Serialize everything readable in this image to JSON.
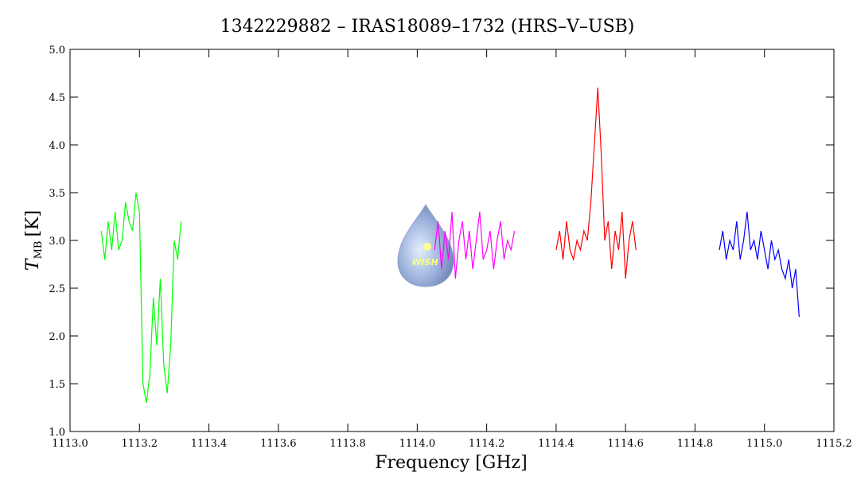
{
  "chart_data": {
    "type": "line",
    "title": "1342229882 – IRAS18089–1732 (HRS–V–USB)",
    "xlabel": "Frequency [GHz]",
    "ylabel": "T",
    "ylabel_sub": "MB",
    "ylabel_unit": "[K]",
    "logo_text": "WISH",
    "xlim": [
      1113.0,
      1115.2
    ],
    "ylim": [
      1.0,
      5.0
    ],
    "xticks": [
      {
        "value": 1113.0,
        "label": "1113.0"
      },
      {
        "value": 1113.2,
        "label": "1113.2"
      },
      {
        "value": 1113.4,
        "label": "1113.4"
      },
      {
        "value": 1113.6,
        "label": "1113.6"
      },
      {
        "value": 1113.8,
        "label": "1113.8"
      },
      {
        "value": 1114.0,
        "label": "1114.0"
      },
      {
        "value": 1114.2,
        "label": "1114.2"
      },
      {
        "value": 1114.4,
        "label": "1114.4"
      },
      {
        "value": 1114.6,
        "label": "1114.6"
      },
      {
        "value": 1114.8,
        "label": "1114.8"
      },
      {
        "value": 1115.0,
        "label": "1115.0"
      },
      {
        "value": 1115.2,
        "label": "1115.2"
      }
    ],
    "yticks": [
      {
        "value": 1.0,
        "label": "1.0"
      },
      1.5,
      {
        "value": 2.0,
        "label": "2.0"
      },
      2.5,
      {
        "value": 3.0,
        "label": "3.0"
      },
      3.5,
      {
        "value": 4.0,
        "label": "4.0"
      },
      4.5,
      {
        "value": 5.0,
        "label": "5.0"
      }
    ],
    "series": [
      {
        "color": "#00ff00",
        "x": [
          1113.09,
          1113.1,
          1113.11,
          1113.12,
          1113.13,
          1113.14,
          1113.15,
          1113.16,
          1113.17,
          1113.18,
          1113.19,
          1113.2,
          1113.21,
          1113.22,
          1113.23,
          1113.24,
          1113.25,
          1113.26,
          1113.27,
          1113.28,
          1113.29,
          1113.3,
          1113.31,
          1113.32
        ],
        "values": [
          3.1,
          2.8,
          3.2,
          2.9,
          3.3,
          2.9,
          3.0,
          3.4,
          3.2,
          3.1,
          3.5,
          3.3,
          1.5,
          1.3,
          1.6,
          2.4,
          1.9,
          2.6,
          1.7,
          1.4,
          1.9,
          3.0,
          2.8,
          3.2
        ]
      },
      {
        "color": "#ff00ff",
        "x": [
          1114.05,
          1114.06,
          1114.07,
          1114.08,
          1114.09,
          1114.1,
          1114.11,
          1114.12,
          1114.13,
          1114.14,
          1114.15,
          1114.16,
          1114.17,
          1114.18,
          1114.19,
          1114.2,
          1114.21,
          1114.22,
          1114.23,
          1114.24,
          1114.25,
          1114.26,
          1114.27,
          1114.28
        ],
        "values": [
          2.9,
          3.2,
          2.7,
          3.1,
          2.8,
          3.3,
          2.6,
          3.0,
          3.2,
          2.8,
          3.1,
          2.7,
          3.0,
          3.3,
          2.8,
          2.9,
          3.1,
          2.7,
          3.0,
          3.2,
          2.8,
          3.0,
          2.9,
          3.1
        ]
      },
      {
        "color": "#ff0000",
        "x": [
          1114.4,
          1114.41,
          1114.42,
          1114.43,
          1114.44,
          1114.45,
          1114.46,
          1114.47,
          1114.48,
          1114.49,
          1114.5,
          1114.51,
          1114.52,
          1114.53,
          1114.54,
          1114.55,
          1114.56,
          1114.57,
          1114.58,
          1114.59,
          1114.6,
          1114.61,
          1114.62,
          1114.63
        ],
        "values": [
          2.9,
          3.1,
          2.8,
          3.2,
          2.9,
          2.8,
          3.0,
          2.9,
          3.1,
          3.0,
          3.4,
          4.0,
          4.6,
          3.9,
          3.0,
          3.2,
          2.7,
          3.1,
          2.9,
          3.3,
          2.6,
          3.0,
          3.2,
          2.9
        ]
      },
      {
        "color": "#0000ff",
        "x": [
          1114.87,
          1114.88,
          1114.89,
          1114.9,
          1114.91,
          1114.92,
          1114.93,
          1114.94,
          1114.95,
          1114.96,
          1114.97,
          1114.98,
          1114.99,
          1115.0,
          1115.01,
          1115.02,
          1115.03,
          1115.04,
          1115.05,
          1115.06,
          1115.07,
          1115.08,
          1115.09,
          1115.1
        ],
        "values": [
          2.9,
          3.1,
          2.8,
          3.0,
          2.9,
          3.2,
          2.8,
          3.0,
          3.3,
          2.9,
          3.0,
          2.8,
          3.1,
          2.9,
          2.7,
          3.0,
          2.8,
          2.9,
          2.7,
          2.6,
          2.8,
          2.5,
          2.7,
          2.2
        ]
      }
    ]
  }
}
